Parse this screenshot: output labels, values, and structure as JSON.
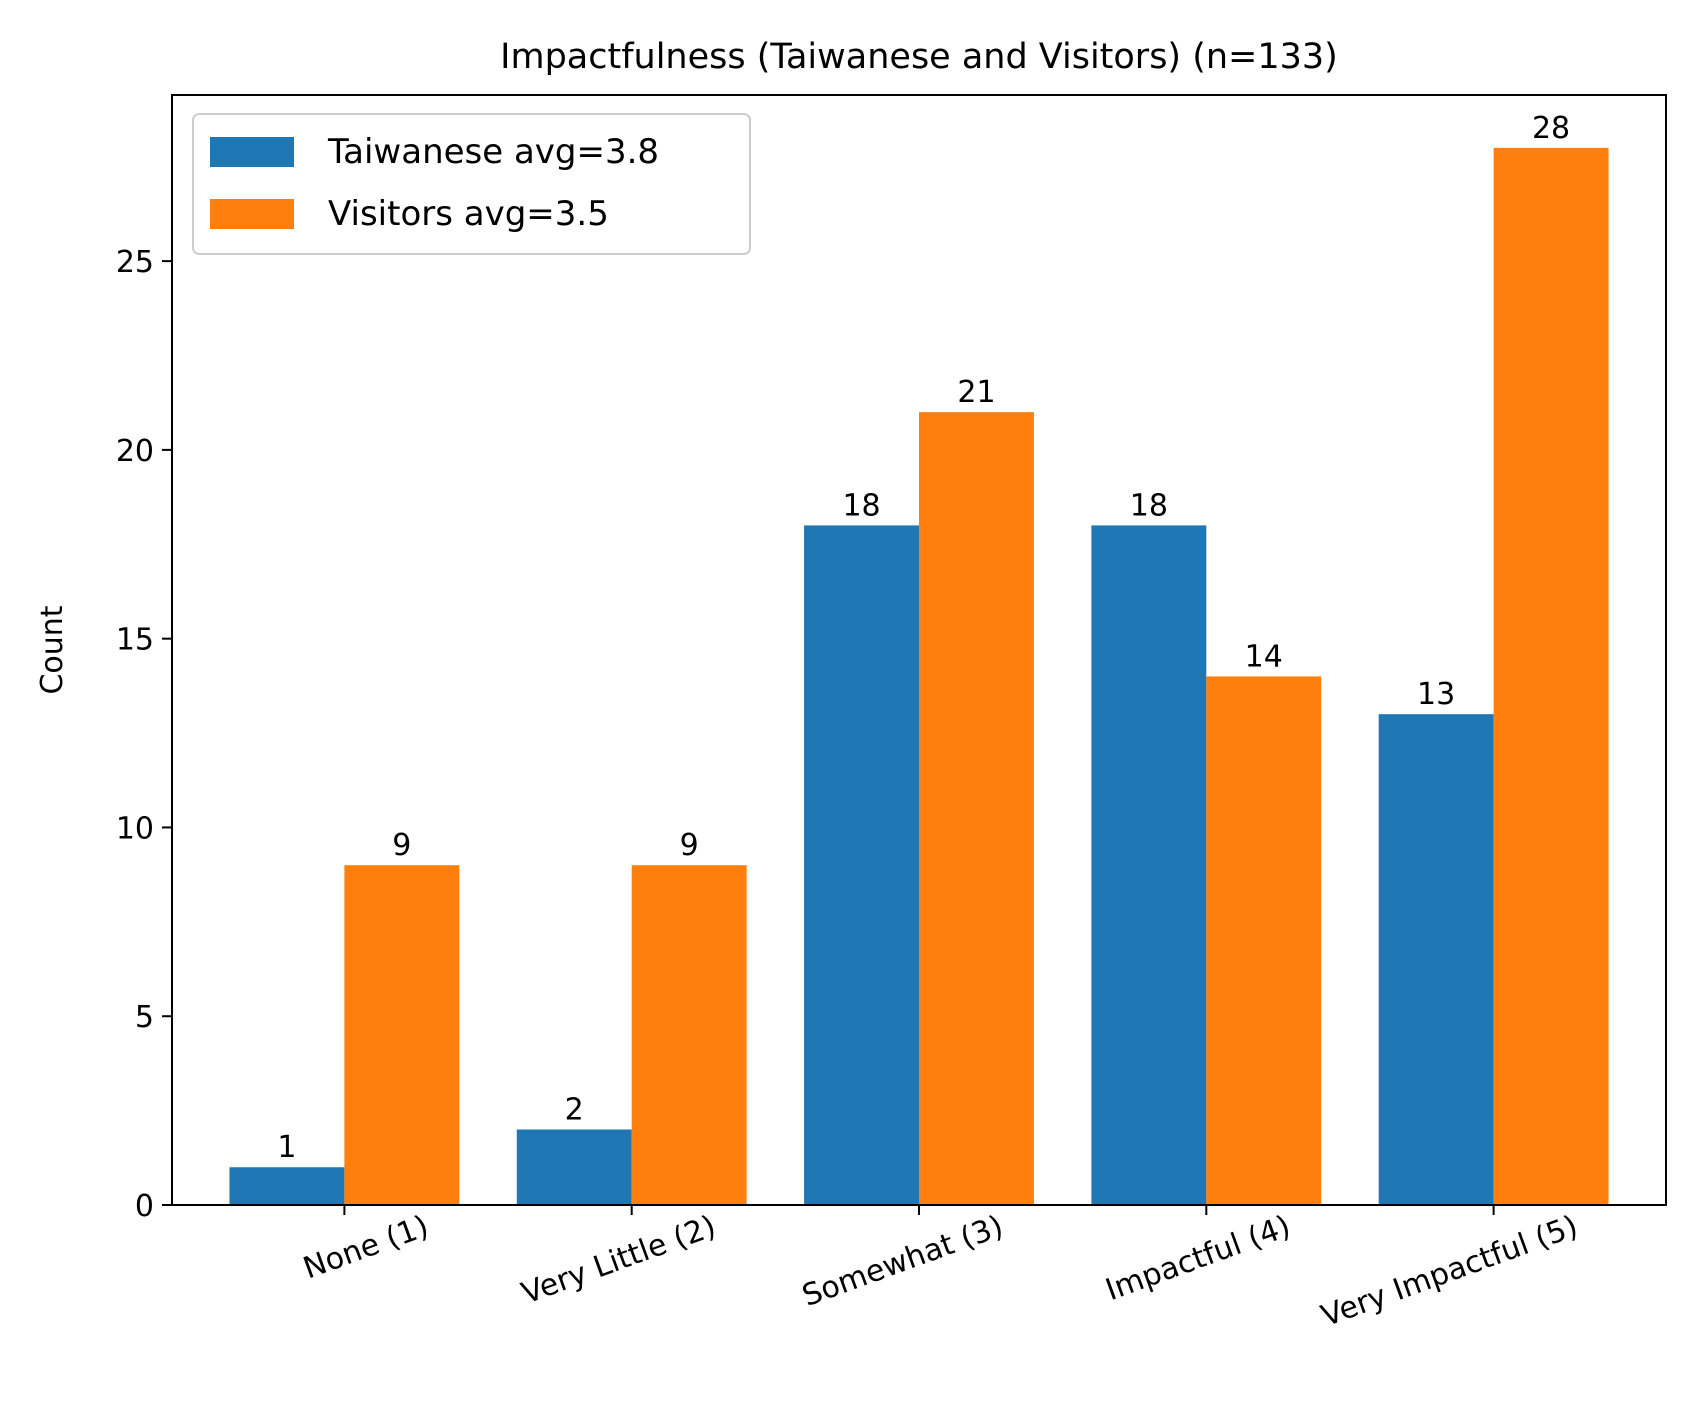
{
  "chart_data": {
    "type": "bar",
    "title": "Impactfulness (Taiwanese and Visitors) (n=133)",
    "xlabel": "",
    "ylabel": "Count",
    "categories": [
      "None (1)",
      "Very Little (2)",
      "Somewhat (3)",
      "Impactful (4)",
      "Very Impactful (5)"
    ],
    "series": [
      {
        "name": "Taiwanese avg=3.8",
        "values": [
          1,
          2,
          18,
          18,
          13
        ],
        "color": "#1f77b4"
      },
      {
        "name": "Visitors avg=3.5",
        "values": [
          9,
          9,
          21,
          14,
          28
        ],
        "color": "#ff7f0e"
      }
    ],
    "ylim": [
      0,
      29.4
    ],
    "yticks": [
      0,
      5,
      10,
      15,
      20,
      25
    ],
    "data_labels": true,
    "x_tick_rotation_deg": 20,
    "grid": false,
    "legend_position": "top-left"
  }
}
